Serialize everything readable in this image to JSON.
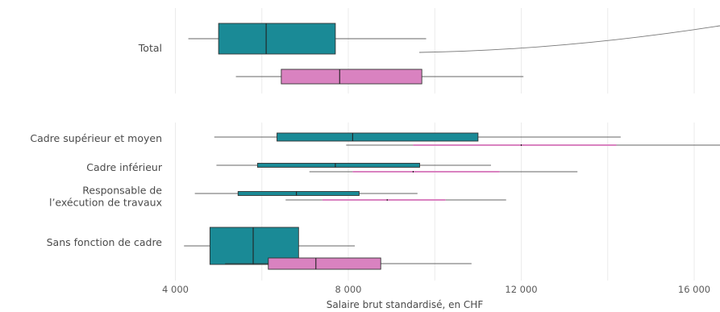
{
  "chart_data": {
    "type": "boxplot",
    "xlabel": "Salaire brut standardisé, en CHF",
    "xlim": [
      3700,
      16700
    ],
    "x_ticks": [
      {
        "value": 4000,
        "label": "4 000"
      },
      {
        "value": 8000,
        "label": "8 000"
      },
      {
        "value": 12000,
        "label": "12 000"
      },
      {
        "value": 16000,
        "label": "16 000"
      }
    ],
    "colors": {
      "series_a": "#1a8a96",
      "series_b": "#d982c0"
    },
    "categories": [
      {
        "label_lines": [
          "Total"
        ],
        "size": "large",
        "boxes": [
          {
            "series": "a",
            "whisker_low": 4300,
            "q1": 5000,
            "median": 6100,
            "q3": 7700,
            "whisker_high": 9800
          },
          {
            "series": "b",
            "whisker_low": 5400,
            "q1": 6450,
            "median": 7800,
            "q3": 9700,
            "whisker_high": 12050
          }
        ]
      },
      {
        "label_lines": [
          "Cadre supérieur et moyen"
        ],
        "size": "medium",
        "boxes": [
          {
            "series": "a",
            "whisker_low": 4900,
            "q1": 6350,
            "median": 8100,
            "q3": 11000,
            "whisker_high": 14300
          },
          {
            "series": "b",
            "whisker_low": 7950,
            "q1": 9500,
            "median": 12000,
            "q3": 14200,
            "whisker_high": 16700
          }
        ]
      },
      {
        "label_lines": [
          "Cadre inférieur"
        ],
        "size": "small",
        "boxes": [
          {
            "series": "a",
            "whisker_low": 4950,
            "q1": 5900,
            "median": 7700,
            "q3": 9650,
            "whisker_high": 11300
          },
          {
            "series": "b",
            "whisker_low": 7100,
            "q1": 8100,
            "median": 9500,
            "q3": 11500,
            "whisker_high": 13300
          }
        ]
      },
      {
        "label_lines": [
          "Responsable de",
          "l’exécution de travaux"
        ],
        "size": "small",
        "boxes": [
          {
            "series": "a",
            "whisker_low": 4450,
            "q1": 5450,
            "median": 6800,
            "q3": 8250,
            "whisker_high": 9600
          },
          {
            "series": "b",
            "whisker_low": 6550,
            "q1": 7400,
            "median": 8900,
            "q3": 10250,
            "whisker_high": 11650
          }
        ]
      },
      {
        "label_lines": [
          "Sans fonction de cadre"
        ],
        "size": "large",
        "boxes": [
          {
            "series": "a",
            "whisker_low": 4200,
            "q1": 4800,
            "median": 5800,
            "q3": 6850,
            "whisker_high": 8150
          },
          {
            "series": "b",
            "whisker_low": 5150,
            "q1": 6150,
            "median": 7250,
            "q3": 8750,
            "whisker_high": 10850
          }
        ]
      }
    ]
  }
}
